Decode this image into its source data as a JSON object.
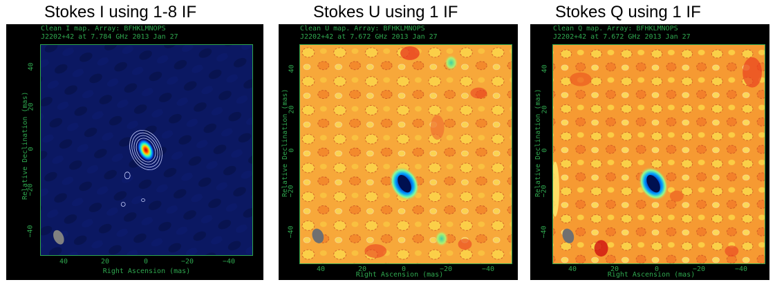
{
  "figure": {
    "panels": [
      {
        "caption": "Stokes I using 1-8 IF",
        "header_line1": "Clean I map.  Array:  BFHKLMNOPS",
        "header_line2": "J2202+42 at 7.784 GHz 2013 Jan 27",
        "ylabel": "Relative Declination  (mas)",
        "xlabel": "Right Ascension  (mas)",
        "yticks": [
          "40",
          "20",
          "0",
          "−20",
          "−40"
        ],
        "xticks": [
          "40",
          "20",
          "0",
          "−20",
          "−40"
        ],
        "colormap": "jet",
        "background_color": "#0a1560"
      },
      {
        "caption": "Stokes U using 1 IF",
        "header_line1": "Clean U map.  Array:  BFHKLMNOPS",
        "header_line2": "J2202+42 at 7.672 GHz 2013 Jan 27",
        "ylabel": "Relative Declination  (mas)",
        "xlabel": "Right Ascension  (mas)",
        "yticks": [
          "40",
          "20",
          "0",
          "−20",
          "−40"
        ],
        "xticks": [
          "40",
          "20",
          "0",
          "−20",
          "−40"
        ],
        "colormap": "jet",
        "background_color": "#f6a436"
      },
      {
        "caption": "Stokes Q using 1 IF",
        "header_line1": "Clean Q map.  Array:  BFHKLMNOPS",
        "header_line2": "J2202+42 at 7.672 GHz 2013 Jan 27",
        "ylabel": "Relative Declination  (mas)",
        "xlabel": "Right Ascension  (mas)",
        "yticks": [
          "40",
          "20",
          "0",
          "−20",
          "−40"
        ],
        "xticks": [
          "40",
          "20",
          "0",
          "−20",
          "−40"
        ],
        "colormap": "jet",
        "background_color": "#f6a436"
      }
    ],
    "axis_color": "#2fa84f"
  }
}
